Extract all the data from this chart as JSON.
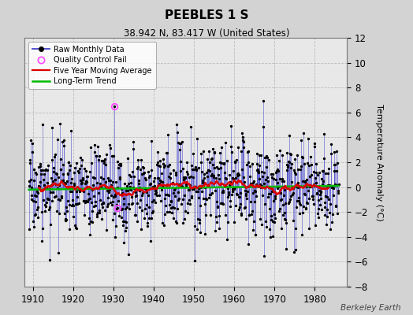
{
  "title": "PEEBLES 1 S",
  "subtitle": "38.942 N, 83.417 W (United States)",
  "ylabel": "Temperature Anomaly (°C)",
  "credit": "Berkeley Earth",
  "xlim": [
    1908,
    1988
  ],
  "ylim": [
    -8,
    12
  ],
  "yticks": [
    -8,
    -6,
    -4,
    -2,
    0,
    2,
    4,
    6,
    8,
    10,
    12
  ],
  "xticks": [
    1910,
    1920,
    1930,
    1940,
    1950,
    1960,
    1970,
    1980
  ],
  "bg_color": "#d3d3d3",
  "plot_bg_color": "#e8e8e8",
  "grid_color": "#bbbbbb",
  "raw_line_color": "#4444cc",
  "raw_marker_color": "#000000",
  "moving_avg_color": "#dd0000",
  "trend_color": "#00bb00",
  "qc_fail_color": "#ff44ff",
  "seed": 17,
  "n_years": 77,
  "start_year": 1909,
  "noise_scale": 2.4,
  "autocorr": 0.25,
  "trend_slope": 0.004,
  "trend_intercept": -0.2,
  "qc_fail_points": [
    [
      1930.25,
      6.5
    ],
    [
      1931.0,
      -1.7
    ]
  ]
}
